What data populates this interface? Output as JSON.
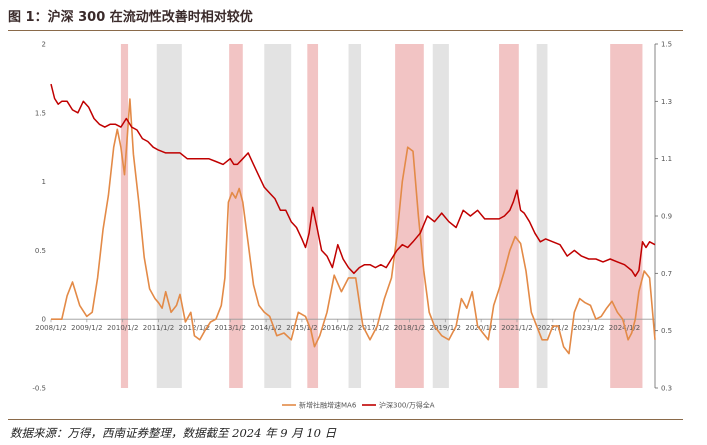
{
  "figure_title": "图 1：沪深 300 在流动性改善时相对较优",
  "source_note": "数据来源：万得，西南证券整理，数据截至 2024 年 9 月 10 日",
  "colors": {
    "orange": "#e38a47",
    "red": "#c00000",
    "pink": "#f2c4c4",
    "gray": "#e3e3e3"
  },
  "chart_data": {
    "type": "line",
    "x_ticks": [
      "2008/1/2",
      "2009/1/2",
      "2010/1/2",
      "2011/1/2",
      "2012/1/2",
      "2013/1/2",
      "2014/1/2",
      "2015/1/2",
      "2016/1/2",
      "2017/1/2",
      "2018/1/2",
      "2019/1/2",
      "2020/1/2",
      "2021/1/2",
      "2022/1/2",
      "2023/1/2",
      "2024/1/2"
    ],
    "y_left": {
      "range": [
        -0.5,
        2
      ],
      "ticks": [
        "-0.5",
        "0",
        "0.5",
        "1",
        "1.5",
        "2"
      ]
    },
    "y_right": {
      "range": [
        0.3,
        1.5
      ],
      "ticks": [
        "0.3",
        "0.5",
        "0.7",
        "0.9",
        "1.1",
        "1.3",
        "1.5"
      ]
    },
    "x_range": [
      2008.0,
      2024.85
    ],
    "legend_position": "bottom-center",
    "shaded_periods": {
      "pink": [
        [
          2009.95,
          2010.15
        ],
        [
          2012.97,
          2013.35
        ],
        [
          2015.15,
          2015.45
        ],
        [
          2017.6,
          2018.4
        ],
        [
          2020.5,
          2021.05
        ],
        [
          2023.6,
          2024.5
        ]
      ],
      "gray": [
        [
          2010.95,
          2011.65
        ],
        [
          2013.95,
          2014.7
        ],
        [
          2016.3,
          2016.65
        ],
        [
          2018.65,
          2019.1
        ],
        [
          2021.55,
          2021.85
        ]
      ]
    },
    "series": [
      {
        "name": "新增社融增速MA6",
        "axis": "left",
        "color": "#e38a47",
        "x": [
          2008.0,
          2008.3,
          2008.45,
          2008.6,
          2008.8,
          2009.0,
          2009.15,
          2009.3,
          2009.45,
          2009.6,
          2009.75,
          2009.85,
          2009.95,
          2010.05,
          2010.12,
          2010.2,
          2010.3,
          2010.45,
          2010.6,
          2010.75,
          2010.9,
          2011.0,
          2011.1,
          2011.2,
          2011.35,
          2011.5,
          2011.6,
          2011.75,
          2011.9,
          2012.0,
          2012.15,
          2012.3,
          2012.45,
          2012.6,
          2012.75,
          2012.85,
          2012.95,
          2013.05,
          2013.15,
          2013.25,
          2013.35,
          2013.5,
          2013.65,
          2013.8,
          2013.95,
          2014.1,
          2014.3,
          2014.5,
          2014.7,
          2014.9,
          2015.1,
          2015.25,
          2015.35,
          2015.5,
          2015.7,
          2015.9,
          2016.1,
          2016.3,
          2016.5,
          2016.7,
          2016.9,
          2017.1,
          2017.3,
          2017.5,
          2017.65,
          2017.8,
          2017.95,
          2018.1,
          2018.25,
          2018.4,
          2018.55,
          2018.7,
          2018.9,
          2019.1,
          2019.3,
          2019.45,
          2019.6,
          2019.75,
          2019.9,
          2020.05,
          2020.2,
          2020.35,
          2020.5,
          2020.65,
          2020.8,
          2020.95,
          2021.1,
          2021.25,
          2021.4,
          2021.55,
          2021.7,
          2021.85,
          2022.0,
          2022.15,
          2022.3,
          2022.45,
          2022.6,
          2022.75,
          2022.9,
          2023.05,
          2023.2,
          2023.35,
          2023.5,
          2023.65,
          2023.8,
          2023.95,
          2024.1,
          2024.2,
          2024.3,
          2024.4,
          2024.55,
          2024.7,
          2024.85
        ],
        "values": [
          0.0,
          0.0,
          0.17,
          0.27,
          0.1,
          0.02,
          0.05,
          0.3,
          0.65,
          0.9,
          1.25,
          1.38,
          1.25,
          1.05,
          1.3,
          1.6,
          1.2,
          0.85,
          0.45,
          0.22,
          0.15,
          0.12,
          0.08,
          0.2,
          0.05,
          0.1,
          0.18,
          -0.02,
          0.05,
          -0.12,
          -0.15,
          -0.08,
          -0.02,
          0.0,
          0.1,
          0.3,
          0.85,
          0.92,
          0.88,
          0.95,
          0.85,
          0.55,
          0.25,
          0.1,
          0.05,
          0.02,
          -0.12,
          -0.1,
          -0.15,
          0.05,
          0.02,
          -0.08,
          -0.2,
          -0.12,
          0.05,
          0.32,
          0.2,
          0.3,
          0.3,
          -0.05,
          -0.15,
          -0.05,
          0.15,
          0.3,
          0.6,
          1.0,
          1.25,
          1.22,
          0.75,
          0.35,
          0.05,
          -0.05,
          -0.12,
          -0.15,
          -0.05,
          0.15,
          0.08,
          0.2,
          -0.05,
          -0.1,
          -0.15,
          0.1,
          0.22,
          0.35,
          0.5,
          0.6,
          0.55,
          0.35,
          0.05,
          -0.05,
          -0.15,
          -0.15,
          -0.05,
          -0.05,
          -0.2,
          -0.25,
          0.05,
          0.15,
          0.12,
          0.1,
          0.0,
          0.02,
          0.08,
          0.13,
          0.05,
          0.0,
          -0.15,
          -0.1,
          0.0,
          0.2,
          0.35,
          0.3,
          -0.15
        ]
      },
      {
        "name": "沪深300/万得全A",
        "axis": "right",
        "color": "#c00000",
        "x": [
          2008.0,
          2008.1,
          2008.2,
          2008.3,
          2008.45,
          2008.6,
          2008.75,
          2008.9,
          2009.05,
          2009.2,
          2009.35,
          2009.5,
          2009.65,
          2009.8,
          2009.95,
          2010.1,
          2010.25,
          2010.4,
          2010.55,
          2010.7,
          2010.85,
          2011.0,
          2011.2,
          2011.4,
          2011.6,
          2011.8,
          2012.0,
          2012.2,
          2012.4,
          2012.6,
          2012.8,
          2013.0,
          2013.1,
          2013.2,
          2013.35,
          2013.5,
          2013.65,
          2013.8,
          2013.95,
          2014.1,
          2014.25,
          2014.4,
          2014.55,
          2014.7,
          2014.85,
          2015.0,
          2015.1,
          2015.2,
          2015.3,
          2015.42,
          2015.55,
          2015.7,
          2015.85,
          2016.0,
          2016.15,
          2016.3,
          2016.45,
          2016.6,
          2016.75,
          2016.9,
          2017.05,
          2017.2,
          2017.35,
          2017.5,
          2017.65,
          2017.8,
          2017.95,
          2018.1,
          2018.3,
          2018.5,
          2018.7,
          2018.9,
          2019.1,
          2019.3,
          2019.5,
          2019.7,
          2019.9,
          2020.1,
          2020.3,
          2020.5,
          2020.65,
          2020.8,
          2020.9,
          2021.0,
          2021.1,
          2021.2,
          2021.35,
          2021.5,
          2021.65,
          2021.8,
          2022.0,
          2022.2,
          2022.4,
          2022.6,
          2022.8,
          2023.0,
          2023.2,
          2023.4,
          2023.6,
          2023.8,
          2024.0,
          2024.1,
          2024.2,
          2024.3,
          2024.4,
          2024.5,
          2024.6,
          2024.7,
          2024.85
        ],
        "values": [
          1.36,
          1.31,
          1.29,
          1.3,
          1.3,
          1.27,
          1.26,
          1.3,
          1.28,
          1.24,
          1.22,
          1.21,
          1.22,
          1.22,
          1.21,
          1.24,
          1.21,
          1.2,
          1.17,
          1.16,
          1.14,
          1.13,
          1.12,
          1.12,
          1.12,
          1.1,
          1.1,
          1.1,
          1.1,
          1.09,
          1.08,
          1.1,
          1.08,
          1.08,
          1.1,
          1.12,
          1.08,
          1.04,
          1.0,
          0.98,
          0.96,
          0.92,
          0.92,
          0.88,
          0.86,
          0.82,
          0.79,
          0.84,
          0.93,
          0.86,
          0.78,
          0.76,
          0.72,
          0.8,
          0.75,
          0.72,
          0.7,
          0.72,
          0.73,
          0.73,
          0.72,
          0.73,
          0.72,
          0.75,
          0.78,
          0.8,
          0.79,
          0.81,
          0.84,
          0.9,
          0.88,
          0.91,
          0.88,
          0.86,
          0.92,
          0.9,
          0.92,
          0.89,
          0.89,
          0.89,
          0.9,
          0.92,
          0.95,
          0.99,
          0.92,
          0.91,
          0.88,
          0.84,
          0.81,
          0.82,
          0.81,
          0.8,
          0.76,
          0.78,
          0.76,
          0.75,
          0.75,
          0.74,
          0.75,
          0.74,
          0.73,
          0.72,
          0.71,
          0.69,
          0.71,
          0.81,
          0.79,
          0.81,
          0.8
        ]
      }
    ]
  }
}
